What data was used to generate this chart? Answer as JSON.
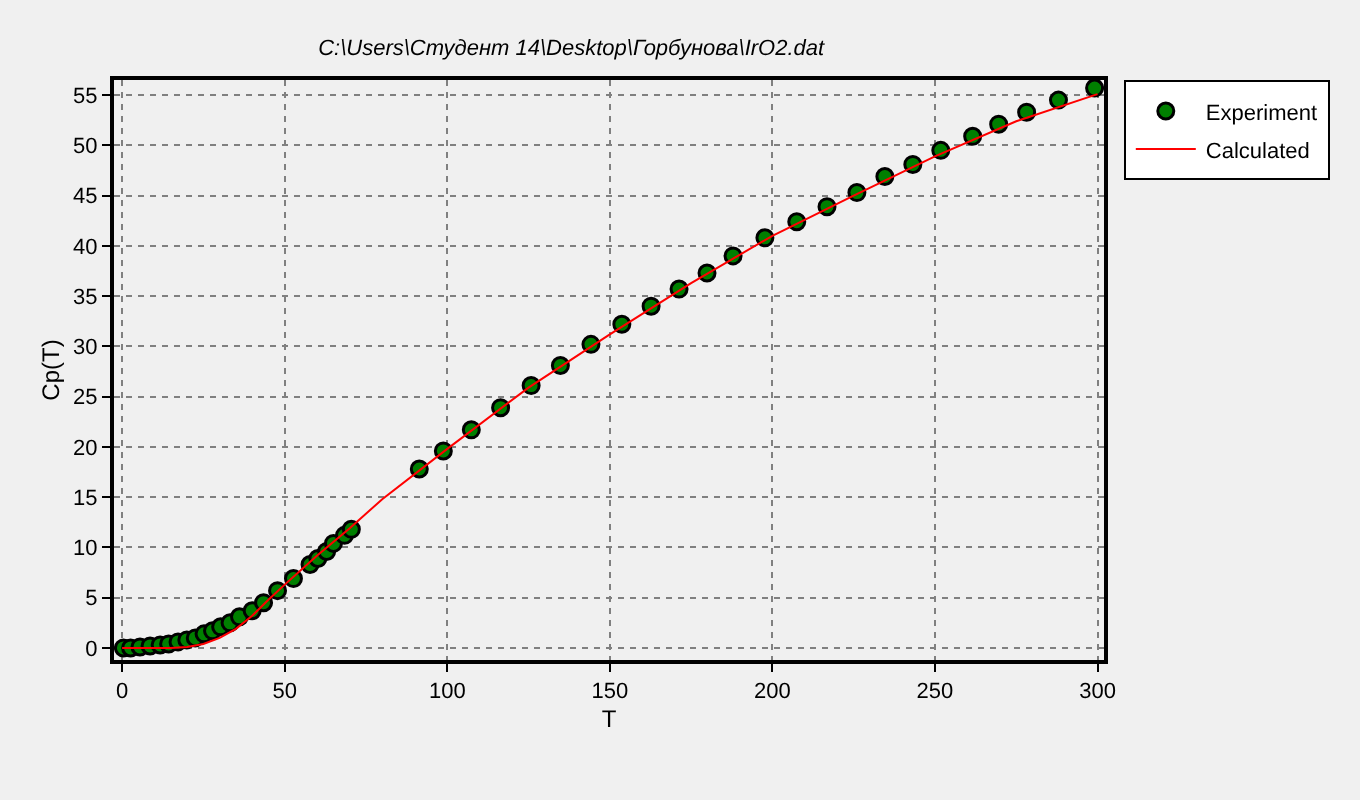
{
  "chart_data": {
    "type": "scatter",
    "title": "C:\\Users\\Студент 14\\Desktop\\Горбунова\\IrO2.dat",
    "xlabel": "T",
    "ylabel": "Cp(T)",
    "xlim": [
      -2.5,
      302
    ],
    "ylim": [
      -1.2,
      56.5
    ],
    "xticks": [
      0,
      50,
      100,
      150,
      200,
      250,
      300
    ],
    "yticks": [
      0,
      5,
      10,
      15,
      20,
      25,
      30,
      35,
      40,
      45,
      50,
      55
    ],
    "grid": true,
    "legend": "top right",
    "series": [
      {
        "name": "Calculated",
        "type": "line",
        "color": "#ff0000",
        "line_style": "solid",
        "x": [
          0,
          15,
          20,
          25,
          30,
          35,
          40,
          45,
          50,
          60,
          70,
          80,
          100,
          125,
          150,
          175,
          200,
          225,
          250,
          275,
          300
        ],
        "values": [
          0,
          0,
          0.1,
          0.4,
          1.0,
          1.9,
          3.2,
          4.8,
          6.3,
          9.2,
          11.9,
          14.8,
          19.8,
          25.9,
          31.2,
          36.3,
          41.0,
          45.0,
          48.9,
          52.4,
          55.1
        ]
      },
      {
        "name": "Experiment",
        "marker": "circle",
        "color": "#007f00",
        "x": [
          0.4,
          2.6,
          5.5,
          8.6,
          11.7,
          14.3,
          17.2,
          19.9,
          22.5,
          25.2,
          27.8,
          30.3,
          33.2,
          36.1,
          40.0,
          43.5,
          47.8,
          52.7,
          57.8,
          60.2,
          62.9,
          65.0,
          68.4,
          70.5,
          91.4,
          98.8,
          107.4,
          116.4,
          125.8,
          134.8,
          144.2,
          153.7,
          162.7,
          171.3,
          179.9,
          187.9,
          197.7,
          207.5,
          216.8,
          226.0,
          234.6,
          243.2,
          251.8,
          261.6,
          269.6,
          278.2,
          288.0,
          299.1
        ],
        "values": [
          0,
          0,
          0.1,
          0.2,
          0.3,
          0.4,
          0.6,
          0.8,
          1.0,
          1.4,
          1.7,
          2.1,
          2.5,
          3.1,
          3.7,
          4.5,
          5.7,
          6.9,
          8.3,
          8.9,
          9.6,
          10.4,
          11.2,
          11.8,
          17.8,
          19.6,
          21.7,
          23.9,
          26.1,
          28.1,
          30.2,
          32.2,
          34.0,
          35.7,
          37.3,
          39.0,
          40.8,
          42.4,
          43.9,
          45.3,
          46.9,
          48.1,
          49.5,
          50.9,
          52.1,
          53.3,
          54.5,
          55.7
        ]
      }
    ]
  }
}
